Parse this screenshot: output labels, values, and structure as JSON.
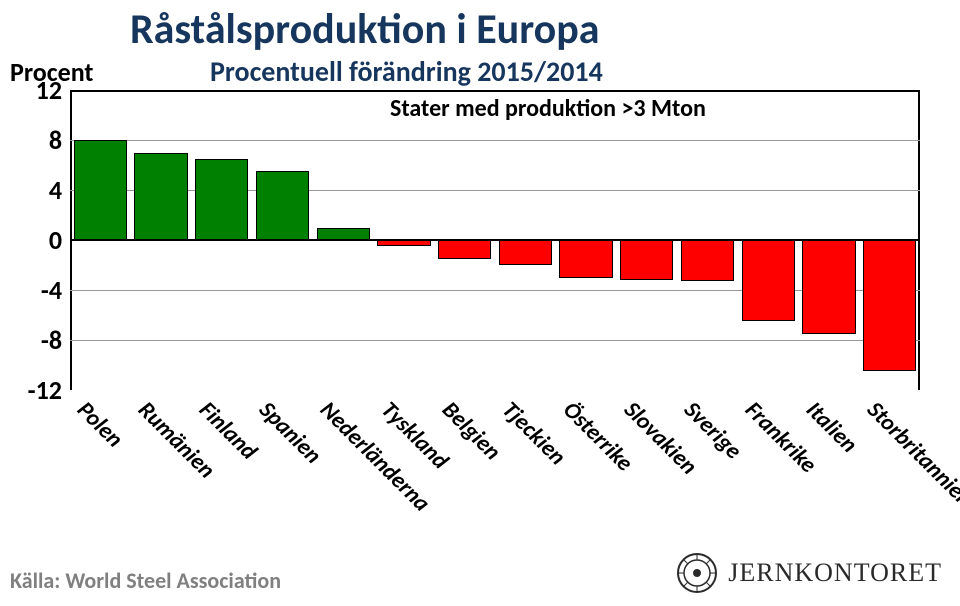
{
  "chart": {
    "type": "bar",
    "title": "Råstålsproduktion i Europa",
    "subtitle": "Procentuell förändring 2015/2014",
    "yaxis_label": "Procent",
    "note": "Stater med produktion >3 Mton",
    "title_color": "#17365d",
    "title_fontsize": 42,
    "subtitle_fontsize": 28,
    "label_fontsize": 26,
    "ylim": [
      -12,
      12
    ],
    "ytick_step": 4,
    "yticks": [
      12,
      8,
      4,
      0,
      -4,
      -8,
      -12
    ],
    "grid_color": "#999999",
    "border_color": "#000000",
    "background_color": "#ffffff",
    "bar_width": 0.88,
    "positive_color": "#008000",
    "negative_color": "#ff0000",
    "categories": [
      "Polen",
      "Rumänien",
      "Finland",
      "Spanien",
      "Nederländerna",
      "Tyskland",
      "Belgien",
      "Tjeckien",
      "Österrike",
      "Slovakien",
      "Sverige",
      "Frankrike",
      "Italien",
      "Storbritannien"
    ],
    "values": [
      8.0,
      7.0,
      6.5,
      5.5,
      1.0,
      -0.5,
      -1.5,
      -2.0,
      -3.0,
      -3.2,
      -3.3,
      -6.5,
      -7.5,
      -10.5
    ]
  },
  "source": "Källa: World Steel Association",
  "logo": {
    "text": "JERNKONTORET"
  }
}
